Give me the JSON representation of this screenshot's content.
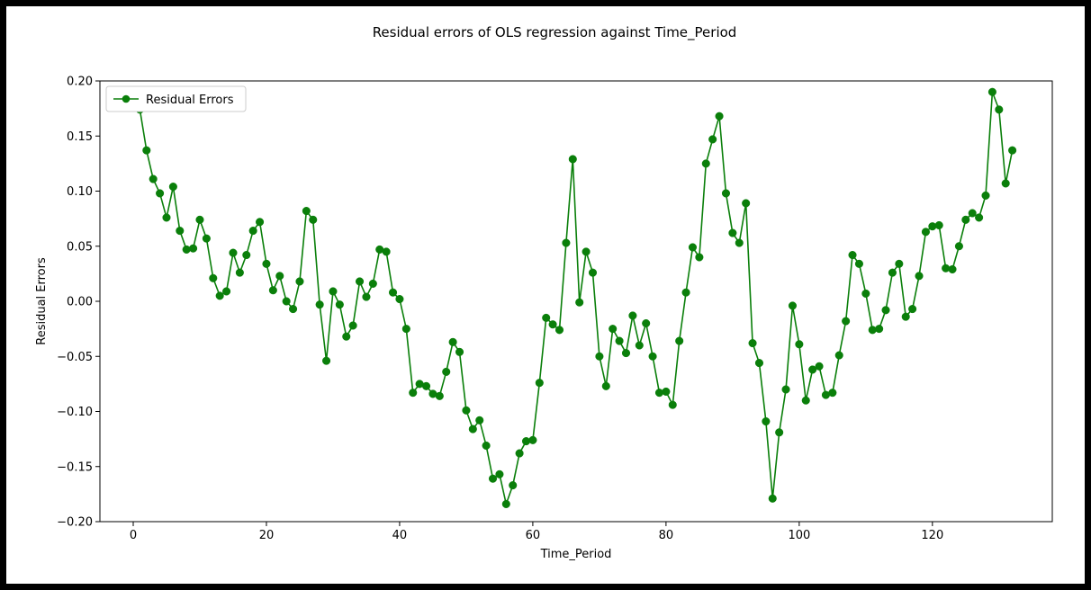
{
  "chart_data": {
    "type": "line",
    "title": "Residual errors of OLS regression against Time_Period",
    "xlabel": "Time_Period",
    "ylabel": "Residual Errors",
    "xlim": [
      -5,
      138
    ],
    "ylim": [
      -0.2,
      0.2
    ],
    "xticks": [
      0,
      20,
      40,
      60,
      80,
      100,
      120
    ],
    "xtick_labels": [
      "0",
      "20",
      "40",
      "60",
      "80",
      "100",
      "120"
    ],
    "yticks": [
      -0.2,
      -0.15,
      -0.1,
      -0.05,
      0.0,
      0.05,
      0.1,
      0.15,
      0.2
    ],
    "ytick_labels": [
      "−0.20",
      "−0.15",
      "−0.10",
      "−0.05",
      "0.00",
      "0.05",
      "0.10",
      "0.15",
      "0.20"
    ],
    "grid": false,
    "legend_position": "top-left",
    "series": [
      {
        "name": "Residual Errors",
        "color": "#0a7f0a",
        "marker": "circle",
        "x": [
          1,
          2,
          3,
          4,
          5,
          6,
          7,
          8,
          9,
          10,
          11,
          12,
          13,
          14,
          15,
          16,
          17,
          18,
          19,
          20,
          21,
          22,
          23,
          24,
          25,
          26,
          27,
          28,
          29,
          30,
          31,
          32,
          33,
          34,
          35,
          36,
          37,
          38,
          39,
          40,
          41,
          42,
          43,
          44,
          45,
          46,
          47,
          48,
          49,
          50,
          51,
          52,
          53,
          54,
          55,
          56,
          57,
          58,
          59,
          60,
          61,
          62,
          63,
          64,
          65,
          66,
          67,
          68,
          69,
          70,
          71,
          72,
          73,
          74,
          75,
          76,
          77,
          78,
          79,
          80,
          81,
          82,
          83,
          84,
          85,
          86,
          87,
          88,
          89,
          90,
          91,
          92,
          93,
          94,
          95,
          96,
          97,
          98,
          99,
          100,
          101,
          102,
          103,
          104,
          105,
          106,
          107,
          108,
          109,
          110,
          111,
          112,
          113,
          114,
          115,
          116,
          117,
          118,
          119,
          120,
          121,
          122,
          123,
          124,
          125,
          126,
          127,
          128,
          129,
          130,
          131,
          132
        ],
        "y": [
          0.174,
          0.137,
          0.111,
          0.098,
          0.076,
          0.104,
          0.064,
          0.047,
          0.048,
          0.074,
          0.057,
          0.021,
          0.005,
          0.009,
          0.044,
          0.026,
          0.042,
          0.064,
          0.072,
          0.034,
          0.01,
          0.023,
          0.0,
          -0.007,
          0.018,
          0.082,
          0.074,
          -0.003,
          -0.054,
          0.009,
          -0.003,
          -0.032,
          -0.022,
          0.018,
          0.004,
          0.016,
          0.047,
          0.045,
          0.008,
          0.002,
          -0.025,
          -0.083,
          -0.075,
          -0.077,
          -0.084,
          -0.086,
          -0.064,
          -0.037,
          -0.046,
          -0.099,
          -0.116,
          -0.108,
          -0.131,
          -0.161,
          -0.157,
          -0.184,
          -0.167,
          -0.138,
          -0.127,
          -0.126,
          -0.074,
          -0.015,
          -0.021,
          -0.026,
          0.053,
          0.129,
          -0.001,
          0.045,
          0.026,
          -0.05,
          -0.077,
          -0.025,
          -0.036,
          -0.047,
          -0.013,
          -0.04,
          -0.02,
          -0.05,
          -0.083,
          -0.082,
          -0.094,
          -0.036,
          0.008,
          0.049,
          0.04,
          0.125,
          0.147,
          0.168,
          0.098,
          0.062,
          0.053,
          0.089,
          -0.038,
          -0.056,
          -0.109,
          -0.179,
          -0.119,
          -0.08,
          -0.004,
          -0.039,
          -0.09,
          -0.062,
          -0.059,
          -0.085,
          -0.083,
          -0.049,
          -0.018,
          0.042,
          0.034,
          0.007,
          -0.026,
          -0.025,
          -0.008,
          0.026,
          0.034,
          -0.014,
          -0.007,
          0.023,
          0.063,
          0.068,
          0.069,
          0.03,
          0.029,
          0.05,
          0.074,
          0.08,
          0.076,
          0.096,
          0.19,
          0.174,
          0.107,
          0.137
        ]
      }
    ]
  }
}
